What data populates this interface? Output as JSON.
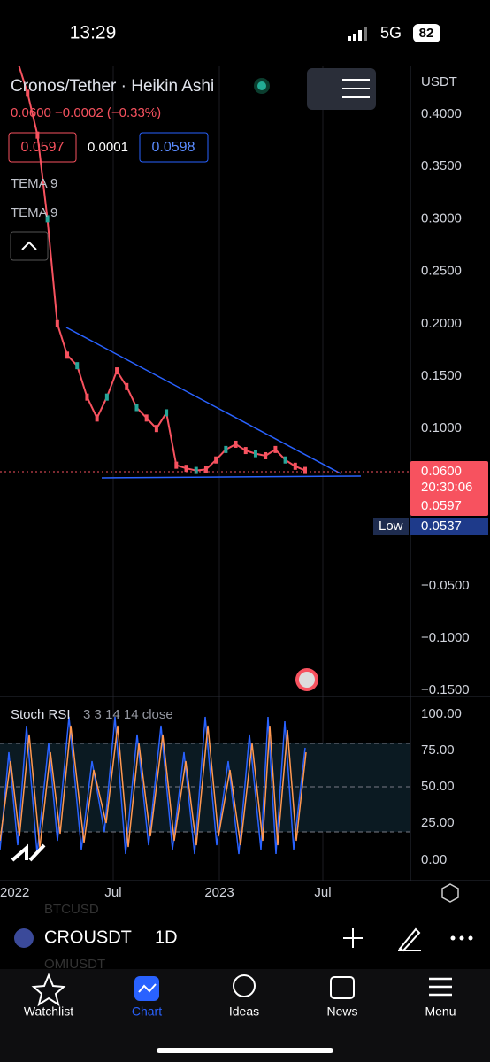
{
  "status": {
    "time": "13:29",
    "network": "5G",
    "battery": "82"
  },
  "header": {
    "title": "Cronos/Tether · Heikin Ashi",
    "change": "0.0600 −0.0002 (−0.33%)",
    "bid": "0.0597",
    "spread": "0.0001",
    "ask": "0.0598",
    "indicators": [
      "TEMA 9",
      "TEMA 9"
    ]
  },
  "price_axis": {
    "currency": "USDT",
    "ticks": [
      {
        "value": 0.4,
        "label": "0.4000"
      },
      {
        "value": 0.35,
        "label": "0.3500"
      },
      {
        "value": 0.3,
        "label": "0.3000"
      },
      {
        "value": 0.25,
        "label": "0.2500"
      },
      {
        "value": 0.2,
        "label": "0.2000"
      },
      {
        "value": 0.15,
        "label": "0.1500"
      },
      {
        "value": 0.1,
        "label": "0.1000"
      },
      {
        "value": -0.05,
        "label": "−0.0500"
      },
      {
        "value": -0.1,
        "label": "−0.1000"
      },
      {
        "value": -0.15,
        "label": "−0.1500"
      }
    ],
    "last": {
      "value": 0.06,
      "label": "0.0600"
    },
    "countdown": "20:30:06",
    "prev": "0.0597",
    "low_label": "Low",
    "low": {
      "value": 0.0537,
      "label": "0.0537"
    }
  },
  "price_series": [
    0.45,
    0.42,
    0.38,
    0.3,
    0.2,
    0.17,
    0.16,
    0.13,
    0.11,
    0.13,
    0.155,
    0.14,
    0.12,
    0.11,
    0.1,
    0.115,
    0.065,
    0.062,
    0.06,
    0.061,
    0.07,
    0.08,
    0.085,
    0.079,
    0.076,
    0.074,
    0.08,
    0.07,
    0.064,
    0.06
  ],
  "stoch": {
    "title": "Stoch RSI",
    "params": "3 3 14 14 close",
    "ticks": [
      "100.00",
      "75.00",
      "50.00",
      "25.00",
      "0.00"
    ]
  },
  "time_axis": [
    "2022",
    "Jul",
    "2023",
    "Jul"
  ],
  "symbol_bar": {
    "symbol": "CROUSDT",
    "interval": "1D",
    "behind_top": "BTCUSD",
    "behind_bottom": "OMIUSDT"
  },
  "nav": [
    "Watchlist",
    "Chart",
    "Ideas",
    "News",
    "Menu"
  ]
}
